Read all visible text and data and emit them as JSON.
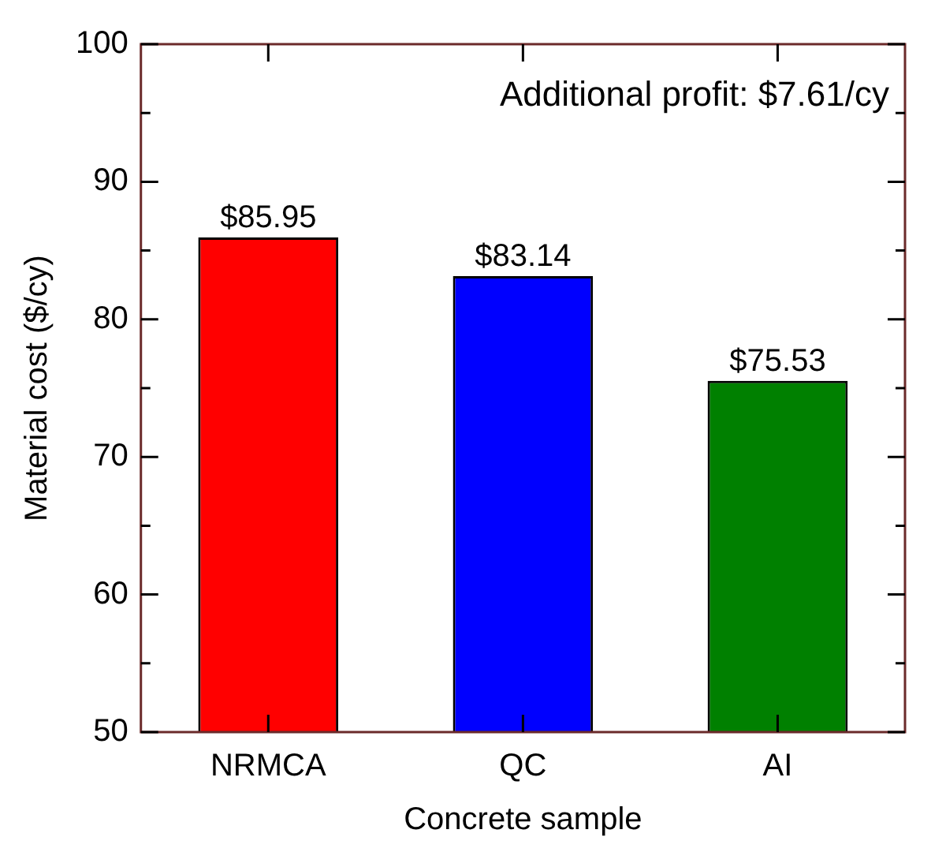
{
  "chart_data": {
    "type": "bar",
    "xlabel": "Concrete sample",
    "ylabel": "Material cost ($/cy)",
    "categories": [
      "NRMCA",
      "QC",
      "AI"
    ],
    "values": [
      85.95,
      83.14,
      75.53
    ],
    "colors": [
      "#ff0000",
      "#0000ff",
      "#008000"
    ],
    "value_labels": [
      "$85.95",
      "$83.14",
      "$75.53"
    ],
    "annotations": [
      "Additional profit: $7.61/cy"
    ],
    "ylim": [
      50,
      100
    ],
    "yticks": [
      50,
      {
        "value": 55,
        "label": null
      },
      60,
      {
        "value": 65,
        "label": null
      },
      70,
      {
        "value": 75,
        "label": null
      },
      80,
      {
        "value": 85,
        "label": null
      },
      90,
      {
        "value": 95,
        "label": null
      },
      100
    ],
    "grid": false,
    "legend": false
  }
}
